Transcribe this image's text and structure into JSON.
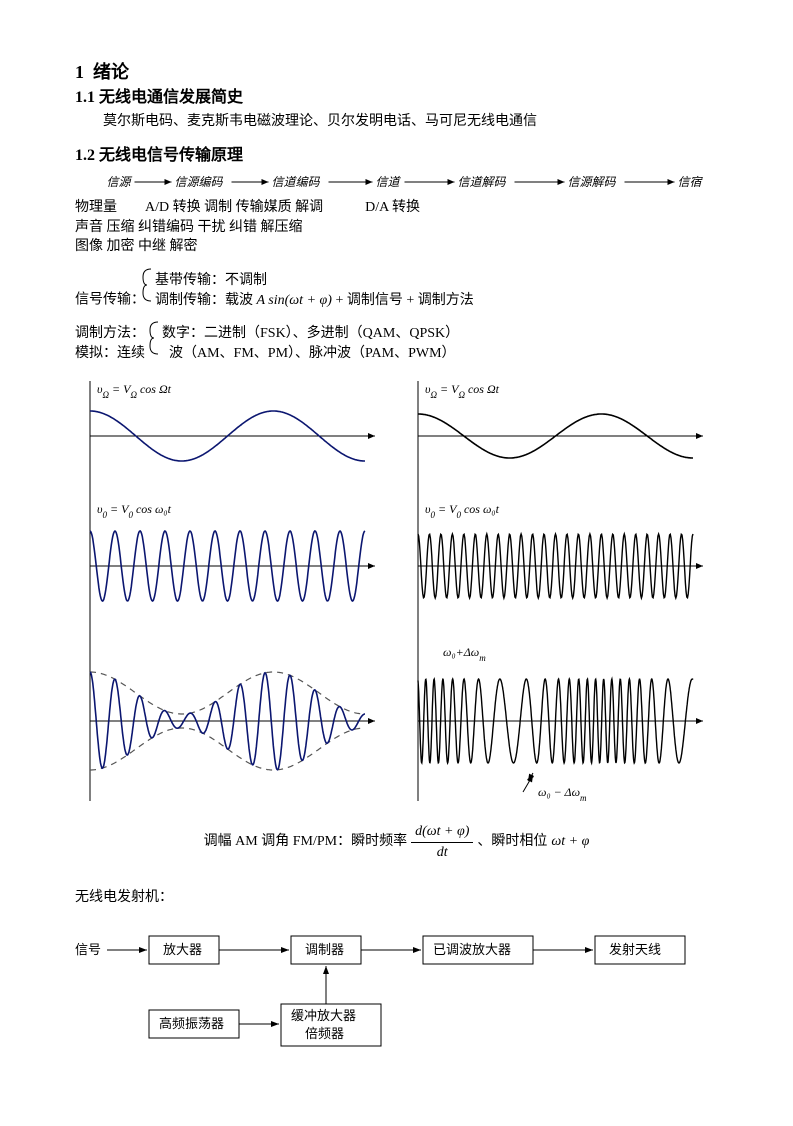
{
  "title_num": "1",
  "title": "绪论",
  "s11_num": "1.1",
  "s11_title": "无线电通信发展简史",
  "s11_body": "莫尔斯电码、麦克斯韦电磁波理论、贝尔发明电话、马可尼无线电通信",
  "s12_num": "1.2",
  "s12_title": "无线电信号传输原理",
  "chain": {
    "nodes": [
      "信源",
      "信源编码",
      "信道编码",
      "信道",
      "信道解码",
      "信源解码",
      "信宿"
    ],
    "row2": "物理量        A/D 转换 调制 传输媒质 解调            D/A 转换",
    "row3": "声音 压缩 纠错编码 干扰 纠错 解压缩",
    "row4": "图像 加密 中继 解密"
  },
  "sig": {
    "l1": "信号传输：",
    "l1a": "基带传输：不调制",
    "l2": "调制传输：载波",
    "formula": "A sin(ωt + φ)",
    "l2b": " + 调制信号 + 调制方法"
  },
  "mod": {
    "l1": "调制方法：",
    "l1a": "数字：二进制（FSK）、多进制（QAM、QPSK）",
    "l2": "模拟：连续",
    "l2a": "波（AM、FM、PM）、脉冲波（PAM、PWM）"
  },
  "labels": {
    "uOmega": "υ",
    "uOmegaSub": "Ω",
    "eq": " = V",
    "cos": " cos ",
    "Omega": "Ωt",
    "u0": "υ",
    "sub0": "0",
    "w0t": "ω₀t",
    "fm_hi": "ω₀+Δω",
    "fm_lo": "ω₀ − Δω",
    "fm_sub": "m"
  },
  "eqline": {
    "pre": "调幅 AM 调角 FM/PM：瞬时频率",
    "frac_num": "d(ωt + φ)",
    "frac_den": "dt",
    "post": "、瞬时相位",
    "phase": "ωt + φ"
  },
  "tx_title": "无线电发射机：",
  "tx": {
    "b0": "信号",
    "b1": "放大器",
    "b2": "调制器",
    "b3": "已调波放大器",
    "b4": "发射天线",
    "b5": "高频振荡器",
    "b6a": "缓冲放大器",
    "b6b": "倍频器"
  },
  "colors": {
    "wave_navy": "#0b1670",
    "wave_black": "#000000",
    "dash": "#555555",
    "bg": "#ffffff"
  }
}
